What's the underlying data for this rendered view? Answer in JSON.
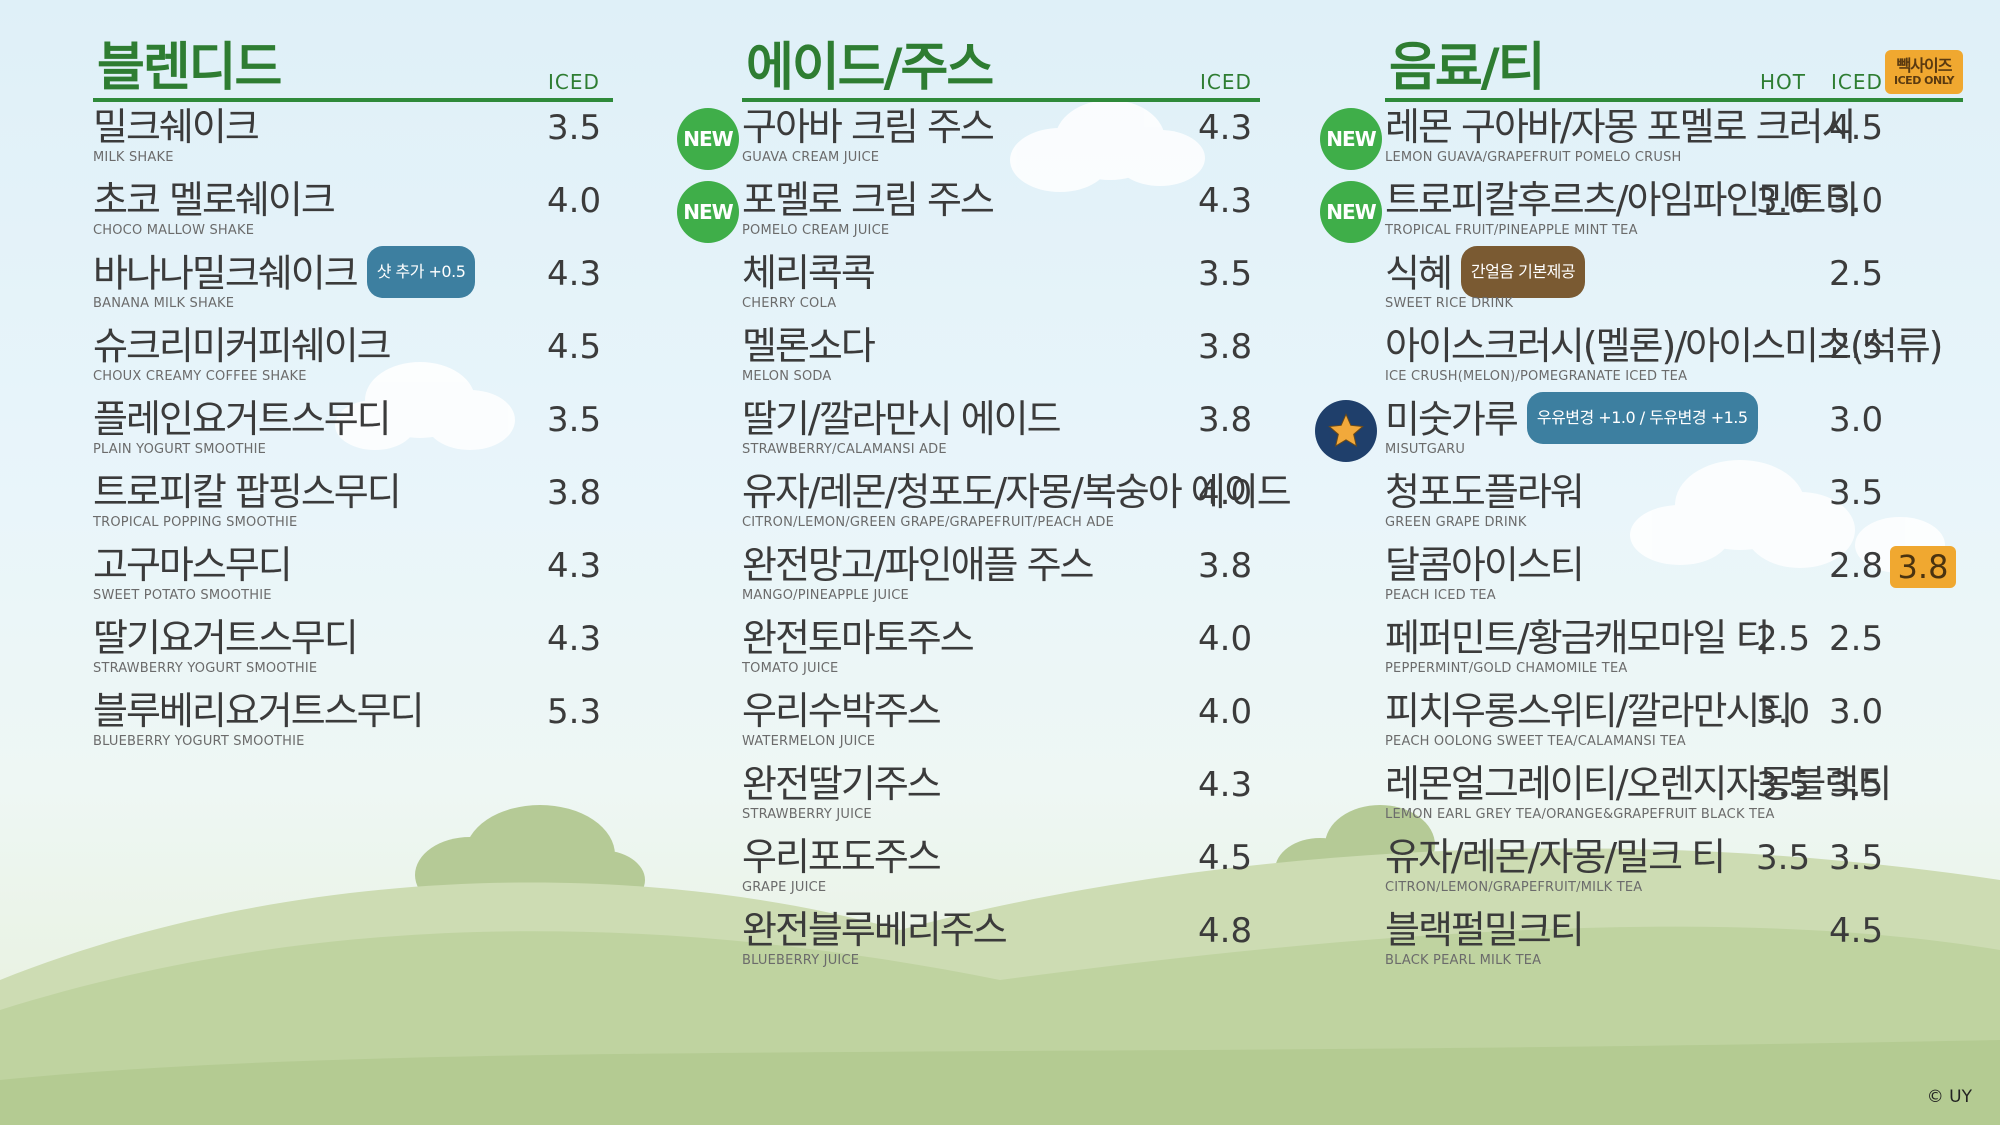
{
  "columns": {
    "blended": {
      "title": "블렌디드",
      "iced_label": "ICED",
      "items": [
        {
          "name": "밀크쉐이크",
          "sub": "MILK SHAKE",
          "iced": "3.5"
        },
        {
          "name": "초코 멜로쉐이크",
          "sub": "CHOCO MALLOW SHAKE",
          "iced": "4.0"
        },
        {
          "name": "바나나밀크쉐이크",
          "sub": "BANANA MILK SHAKE",
          "iced": "4.3",
          "tag": "샷 추가 +0.5"
        },
        {
          "name": "슈크리미커피쉐이크",
          "sub": "CHOUX CREAMY COFFEE SHAKE",
          "iced": "4.5"
        },
        {
          "name": "플레인요거트스무디",
          "sub": "PLAIN YOGURT SMOOTHIE",
          "iced": "3.5"
        },
        {
          "name": "트로피칼 팝핑스무디",
          "sub": "TROPICAL POPPING SMOOTHIE",
          "iced": "3.8"
        },
        {
          "name": "고구마스무디",
          "sub": "SWEET POTATO SMOOTHIE",
          "iced": "4.3"
        },
        {
          "name": "딸기요거트스무디",
          "sub": "STRAWBERRY YOGURT SMOOTHIE",
          "iced": "4.3"
        },
        {
          "name": "블루베리요거트스무디",
          "sub": "BLUEBERRY YOGURT SMOOTHIE",
          "iced": "5.3"
        }
      ]
    },
    "ade": {
      "title": "에이드/주스",
      "iced_label": "ICED",
      "new_label": "NEW",
      "items": [
        {
          "name": "구아바 크림 주스",
          "sub": "GUAVA CREAM JUICE",
          "iced": "4.3",
          "is_new": true
        },
        {
          "name": "포멜로 크림 주스",
          "sub": "POMELO CREAM JUICE",
          "iced": "4.3",
          "is_new": true
        },
        {
          "name": "체리콕콕",
          "sub": "CHERRY COLA",
          "iced": "3.5"
        },
        {
          "name": "멜론소다",
          "sub": "MELON SODA",
          "iced": "3.8"
        },
        {
          "name": "딸기/깔라만시 에이드",
          "sub": "STRAWBERRY/CALAMANSI ADE",
          "iced": "3.8"
        },
        {
          "name": "유자/레몬/청포도/자몽/복숭아 에이드",
          "sub": "CITRON/LEMON/GREEN GRAPE/GRAPEFRUIT/PEACH ADE",
          "iced": "4.0"
        },
        {
          "name": "완전망고/파인애플 주스",
          "sub": "MANGO/PINEAPPLE JUICE",
          "iced": "3.8"
        },
        {
          "name": "완전토마토주스",
          "sub": "TOMATO JUICE",
          "iced": "4.0"
        },
        {
          "name": "우리수박주스",
          "sub": "WATERMELON JUICE",
          "iced": "4.0"
        },
        {
          "name": "완전딸기주스",
          "sub": "STRAWBERRY JUICE",
          "iced": "4.3"
        },
        {
          "name": "우리포도주스",
          "sub": "GRAPE JUICE",
          "iced": "4.5"
        },
        {
          "name": "완전블루베리주스",
          "sub": "BLUEBERRY JUICE",
          "iced": "4.8"
        }
      ]
    },
    "drinks": {
      "title": "음료/티",
      "hot_label": "HOT",
      "iced_label": "ICED",
      "new_label": "NEW",
      "mega_badge_line1": "빽사이즈",
      "mega_badge_line2": "ICED ONLY",
      "items": [
        {
          "name": "레몬 구아바/자몽 포멜로 크러시",
          "sub": "LEMON GUAVA/GRAPEFRUIT POMELO CRUSH",
          "hot": "",
          "iced": "4.5",
          "is_new": true
        },
        {
          "name": "트로피칼후르츠/아임파인민트티",
          "sub": "TROPICAL FRUIT/PINEAPPLE MINT TEA",
          "hot": "3.0",
          "iced": "3.0",
          "is_new": true
        },
        {
          "name": "식혜",
          "sub": "SWEET RICE DRINK",
          "hot": "",
          "iced": "2.5",
          "tag": "간얼음 기본제공"
        },
        {
          "name": "아이스크러시(멜론)/아이스미초(석류)",
          "sub": "ICE CRUSH(MELON)/POMEGRANATE ICED TEA",
          "hot": "",
          "iced": "2.5"
        },
        {
          "name": "미숫가루",
          "sub": "MISUTGARU",
          "hot": "",
          "iced": "3.0",
          "tag": "우유변경 +1.0 / 두유변경 +1.5",
          "star": true
        },
        {
          "name": "청포도플라워",
          "sub": "GREEN GRAPE DRINK",
          "hot": "",
          "iced": "3.5"
        },
        {
          "name": "달콤아이스티",
          "sub": "PEACH ICED TEA",
          "hot": "",
          "iced": "2.8",
          "mega": "3.8"
        },
        {
          "name": "페퍼민트/황금캐모마일 티",
          "sub": "PEPPERMINT/GOLD CHAMOMILE TEA",
          "hot": "2.5",
          "iced": "2.5"
        },
        {
          "name": "피치우롱스위티/깔라만시티",
          "sub": "PEACH OOLONG SWEET TEA/CALAMANSI TEA",
          "hot": "3.0",
          "iced": "3.0"
        },
        {
          "name": "레몬얼그레이티/오렌지자몽블랙티",
          "sub": "LEMON EARL GREY TEA/ORANGE&GRAPEFRUIT BLACK TEA",
          "hot": "3.5",
          "iced": "3.5"
        },
        {
          "name": "유자/레몬/자몽/밀크 티",
          "sub": "CITRON/LEMON/GRAPEFRUIT/MILK TEA",
          "hot": "3.5",
          "iced": "3.5"
        },
        {
          "name": "블랙펄밀크티",
          "sub": "BLACK PEARL MILK TEA",
          "hot": "",
          "iced": "4.5"
        }
      ]
    }
  },
  "copyright": "© UY",
  "colors": {
    "accent_green": "#2e7d32",
    "new_badge": "#3fae49",
    "mega_orange": "#f0a830",
    "tag_blue": "#3d7fa0",
    "tag_brown": "#7a5a32"
  }
}
